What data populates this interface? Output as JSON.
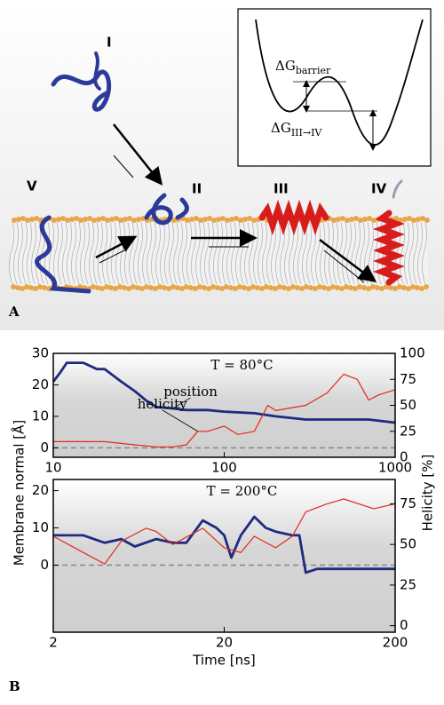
{
  "panel_a": {
    "label": "A",
    "states": [
      "I",
      "II",
      "III",
      "IV",
      "V"
    ],
    "dg_barrier": {
      "symbol": "ΔG",
      "subscript": "barrier"
    },
    "dg_transition": {
      "symbol": "ΔG",
      "subscript": "III→IV"
    }
  },
  "panel_b": {
    "label": "B",
    "ylabel": "Membrane normal [Å]",
    "y2label": "Helicity [%]"
  },
  "chart_data": [
    {
      "type": "line",
      "title": "T = 80°C",
      "xlog": true,
      "xlim": [
        10,
        1000
      ],
      "xticks": [
        10,
        100,
        1000
      ],
      "ylim": [
        -3,
        30
      ],
      "yticks": [
        0,
        10,
        20,
        30
      ],
      "y2lim": [
        0,
        100
      ],
      "y2ticks": [
        0,
        25,
        50,
        75,
        100
      ],
      "reference_line": 0,
      "series": [
        {
          "name": "position",
          "color": "#1f2a80",
          "axis": "y",
          "x": [
            10,
            11,
            12,
            15,
            18,
            20,
            25,
            30,
            35,
            40,
            50,
            60,
            80,
            100,
            150,
            200,
            300,
            500,
            700,
            1000
          ],
          "values": [
            21,
            24,
            27,
            27,
            25,
            25,
            21,
            18,
            15,
            13,
            12.5,
            12,
            12,
            11.5,
            11,
            10,
            9,
            9,
            9,
            8
          ]
        },
        {
          "name": "helicity",
          "color": "#e02a1a",
          "axis": "y2",
          "x": [
            10,
            20,
            30,
            40,
            50,
            60,
            70,
            80,
            100,
            120,
            150,
            180,
            200,
            300,
            400,
            500,
            600,
            700,
            800,
            1000
          ],
          "values": [
            15,
            15,
            12,
            10,
            10,
            12,
            25,
            25,
            30,
            22,
            25,
            50,
            45,
            50,
            62,
            80,
            75,
            55,
            60,
            65
          ]
        }
      ]
    },
    {
      "type": "line",
      "title": "T = 200°C",
      "xlog": true,
      "xlim": [
        2,
        200
      ],
      "xticks": [
        2,
        20,
        200
      ],
      "xlabel": "Time [ns]",
      "ylim": [
        -18,
        23
      ],
      "yticks": [
        0,
        10,
        20
      ],
      "y2lim": [
        -4,
        90
      ],
      "y2ticks": [
        0,
        25,
        50,
        75
      ],
      "reference_line": 0,
      "series": [
        {
          "color": "#1f2a80",
          "axis": "y",
          "x": [
            2,
            3,
            4,
            5,
            6,
            8,
            10,
            12,
            15,
            18,
            20,
            22,
            25,
            30,
            35,
            40,
            50,
            55,
            60,
            70,
            100,
            150,
            200
          ],
          "values": [
            8,
            8,
            6,
            7,
            5,
            7,
            6,
            6,
            12,
            10,
            8,
            2,
            8,
            13,
            10,
            9,
            8,
            8,
            -2,
            -1,
            -1,
            -1,
            -1
          ]
        },
        {
          "color": "#e02a1a",
          "axis": "y2",
          "x": [
            2,
            3,
            4,
            5,
            7,
            8,
            10,
            15,
            20,
            25,
            30,
            40,
            50,
            60,
            80,
            100,
            150,
            200
          ],
          "values": [
            55,
            45,
            38,
            52,
            60,
            58,
            50,
            60,
            48,
            45,
            55,
            48,
            55,
            70,
            75,
            78,
            72,
            75
          ]
        }
      ]
    }
  ]
}
